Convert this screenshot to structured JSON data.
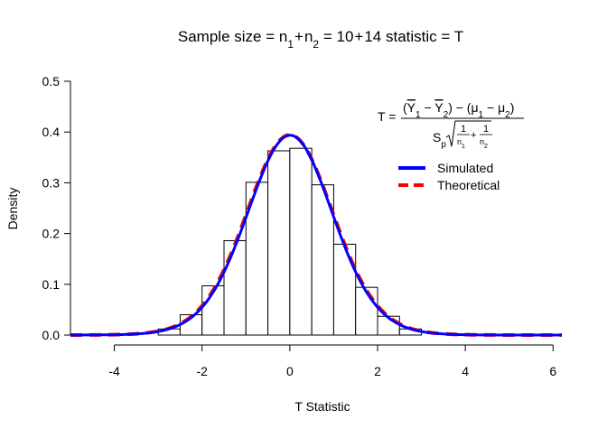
{
  "chart_data": {
    "type": "histogram",
    "title": "Sample size = n1+n2 = 10+14 statistic = T",
    "title_parts": {
      "prefix": "Sample size = n",
      "sub1": "1",
      "plus1": "+",
      "n2": "n",
      "sub2": "2",
      "middle": " = 10",
      "plus2": "+",
      "suffix": "14 statistic = T"
    },
    "xlabel": "T Statistic",
    "ylabel": "Density",
    "xlim": [
      -5,
      6.2
    ],
    "ylim": [
      0,
      0.5
    ],
    "x_ticks": [
      -4,
      -2,
      0,
      2,
      4,
      6
    ],
    "x_tick_labels": [
      "-4",
      "-2",
      "0",
      "2",
      "4",
      "6"
    ],
    "y_ticks": [
      0.0,
      0.1,
      0.2,
      0.3,
      0.4,
      0.5
    ],
    "y_tick_labels": [
      "0.0",
      "0.1",
      "0.2",
      "0.3",
      "0.4",
      "0.5"
    ],
    "bins": [
      {
        "x0": -3.0,
        "x1": -2.5,
        "density": 0.012
      },
      {
        "x0": -2.5,
        "x1": -2.0,
        "density": 0.04
      },
      {
        "x0": -2.0,
        "x1": -1.5,
        "density": 0.097
      },
      {
        "x0": -1.5,
        "x1": -1.0,
        "density": 0.186
      },
      {
        "x0": -1.0,
        "x1": -0.5,
        "density": 0.301
      },
      {
        "x0": -0.5,
        "x1": 0.0,
        "density": 0.363
      },
      {
        "x0": 0.0,
        "x1": 0.5,
        "density": 0.368
      },
      {
        "x0": 0.5,
        "x1": 1.0,
        "density": 0.296
      },
      {
        "x0": 1.0,
        "x1": 1.5,
        "density": 0.179
      },
      {
        "x0": 1.5,
        "x1": 2.0,
        "density": 0.094
      },
      {
        "x0": 2.0,
        "x1": 2.5,
        "density": 0.037
      },
      {
        "x0": 2.5,
        "x1": 3.0,
        "density": 0.012
      }
    ],
    "series": [
      {
        "name": "Simulated",
        "color": "#0000ff",
        "style": "solid",
        "distribution": "kernel density, peak about 0.388"
      },
      {
        "name": "Theoretical",
        "color": "#ff0000",
        "style": "dashed",
        "distribution": "t",
        "df": 22
      }
    ],
    "legend": [
      {
        "label": "Simulated",
        "color": "#0000ff",
        "style": "solid"
      },
      {
        "label": "Theoretical",
        "color": "#ff0000",
        "style": "dashed"
      }
    ],
    "legend_position": "top-right",
    "formula": {
      "lhs": "T =",
      "numerator": "(Y1 − Y2) − (μ1 − μ2)",
      "denominator": "Sp √(1/n1 + 1/n2)"
    },
    "grid": false
  }
}
